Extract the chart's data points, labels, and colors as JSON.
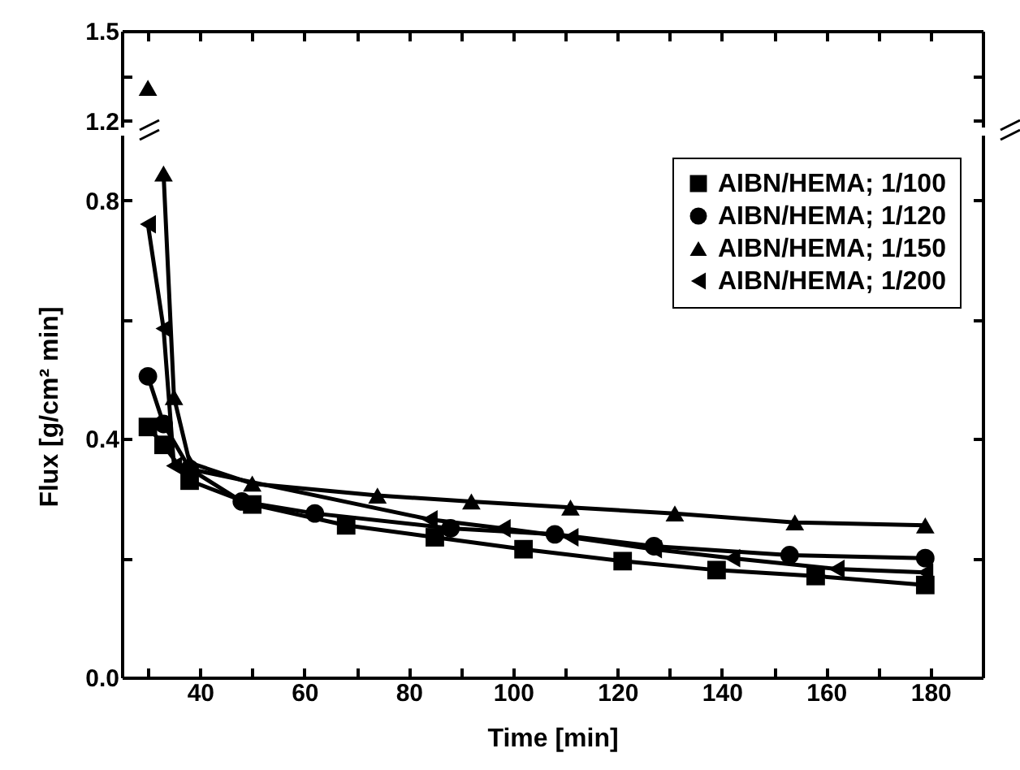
{
  "chart_data": [
    {
      "type": "line",
      "xlim": [
        25,
        190
      ],
      "xticks": [
        {
          "value": 30,
          "label": null
        },
        {
          "value": 40,
          "label": null
        },
        {
          "value": 50,
          "label": null
        },
        {
          "value": 60,
          "label": null
        },
        {
          "value": 70,
          "label": null
        },
        {
          "value": 80,
          "label": null
        },
        {
          "value": 90,
          "label": null
        },
        {
          "value": 100,
          "label": null
        },
        {
          "value": 110,
          "label": null
        },
        {
          "value": 120,
          "label": null
        },
        {
          "value": 130,
          "label": null
        },
        {
          "value": 140,
          "label": null
        },
        {
          "value": 150,
          "label": null
        },
        {
          "value": 160,
          "label": null
        },
        {
          "value": 170,
          "label": null
        },
        {
          "value": 180,
          "label": null
        }
      ],
      "ylim": [
        1.18,
        1.5
      ],
      "yticks": [
        1.2,
        {
          "value": 1.35,
          "label": null
        },
        1.5
      ],
      "tick_labels": "y",
      "series": [
        {
          "color": "#000000",
          "marker": "triangle",
          "x": [
            30
          ],
          "values": [
            1.31
          ]
        }
      ]
    },
    {
      "type": "line",
      "xlabel": "Time [min]",
      "ylabel": "Flux [g/cm² min]",
      "xlim": [
        25,
        190
      ],
      "xticks": [
        {
          "value": 30,
          "label": null
        },
        40,
        {
          "value": 50,
          "label": null
        },
        60,
        {
          "value": 70,
          "label": null
        },
        80,
        {
          "value": 90,
          "label": null
        },
        100,
        {
          "value": 110,
          "label": null
        },
        120,
        {
          "value": 130,
          "label": null
        },
        140,
        {
          "value": 150,
          "label": null
        },
        160,
        {
          "value": 170,
          "label": null
        },
        180
      ],
      "ylim": [
        0,
        0.91
      ],
      "yticks": [
        {
          "value": 0,
          "label": "0.0"
        },
        {
          "value": 0.2,
          "label": null
        },
        0.4,
        {
          "value": 0.6,
          "label": null
        },
        0.8
      ],
      "legend": "top right",
      "line_style": "solid",
      "series": [
        {
          "name": "AIBN/HEMA; 1/100",
          "color": "#000000",
          "marker": "square",
          "x": [
            30,
            33,
            38,
            50,
            68,
            85,
            102,
            121,
            139,
            158,
            179
          ],
          "values": [
            0.42,
            0.39,
            0.33,
            0.29,
            0.255,
            0.235,
            0.215,
            0.195,
            0.18,
            0.17,
            0.155
          ]
        },
        {
          "name": "AIBN/HEMA; 1/120",
          "color": "#000000",
          "marker": "circle",
          "x": [
            30,
            33,
            38,
            48,
            62,
            88,
            108,
            127,
            153,
            179
          ],
          "values": [
            0.505,
            0.425,
            0.35,
            0.295,
            0.275,
            0.25,
            0.24,
            0.22,
            0.205,
            0.2
          ]
        },
        {
          "name": "AIBN/HEMA; 1/150",
          "color": "#000000",
          "marker": "triangle",
          "x": [
            33,
            35,
            38,
            50,
            74,
            92,
            111,
            131,
            154,
            179
          ],
          "values": [
            0.845,
            0.47,
            0.36,
            0.325,
            0.305,
            0.295,
            0.285,
            0.275,
            0.26,
            0.255
          ]
        },
        {
          "name": "AIBN/HEMA; 1/200",
          "color": "#000000",
          "marker": "triangle-left",
          "x": [
            30,
            33,
            35,
            84,
            98,
            111,
            127,
            142,
            162,
            179
          ],
          "values": [
            0.76,
            0.585,
            0.355,
            0.265,
            0.25,
            0.235,
            0.215,
            0.2,
            0.182,
            0.176
          ]
        }
      ]
    }
  ]
}
